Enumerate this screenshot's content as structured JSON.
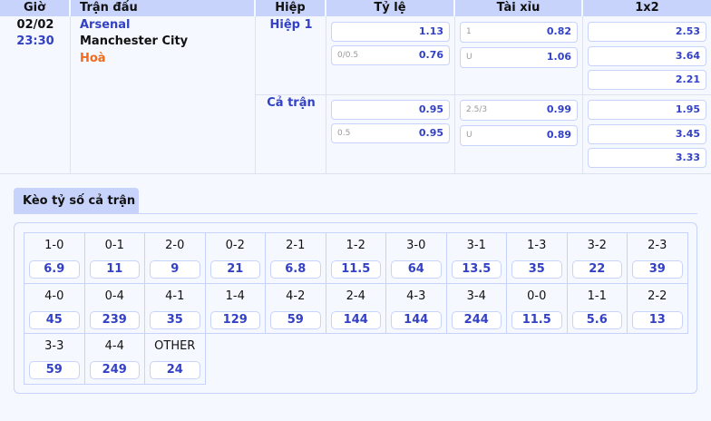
{
  "header": {
    "time": "Giờ",
    "match": "Trận đấu",
    "half": "Hiệp",
    "handicap": "Tỷ lệ",
    "overunder": "Tài xỉu",
    "x12": "1x2"
  },
  "match": {
    "date": "02/02",
    "time": "23:30",
    "home": "Arsenal",
    "away": "Manchester City",
    "draw": "Hoà"
  },
  "periods": [
    {
      "name": "Hiệp 1",
      "handicap": [
        {
          "line": "",
          "odds": "1.13"
        },
        {
          "line": "0/0.5",
          "odds": "0.76"
        }
      ],
      "overunder": [
        {
          "line": "1",
          "odds": "0.82"
        },
        {
          "line": "U",
          "odds": "1.06"
        }
      ],
      "x12": [
        "2.53",
        "3.64",
        "2.21"
      ]
    },
    {
      "name": "Cả trận",
      "handicap": [
        {
          "line": "",
          "odds": "0.95"
        },
        {
          "line": "0.5",
          "odds": "0.95"
        }
      ],
      "overunder": [
        {
          "line": "2.5/3",
          "odds": "0.99"
        },
        {
          "line": "U",
          "odds": "0.89"
        }
      ],
      "x12": [
        "1.95",
        "3.45",
        "3.33"
      ]
    }
  ],
  "correct_score": {
    "tab": "Kèo tỷ số cả trận",
    "items": [
      {
        "s": "1-0",
        "o": "6.9"
      },
      {
        "s": "0-1",
        "o": "11"
      },
      {
        "s": "2-0",
        "o": "9"
      },
      {
        "s": "0-2",
        "o": "21"
      },
      {
        "s": "2-1",
        "o": "6.8"
      },
      {
        "s": "1-2",
        "o": "11.5"
      },
      {
        "s": "3-0",
        "o": "64"
      },
      {
        "s": "3-1",
        "o": "13.5"
      },
      {
        "s": "1-3",
        "o": "35"
      },
      {
        "s": "3-2",
        "o": "22"
      },
      {
        "s": "2-3",
        "o": "39"
      },
      {
        "s": "4-0",
        "o": "45"
      },
      {
        "s": "0-4",
        "o": "239"
      },
      {
        "s": "4-1",
        "o": "35"
      },
      {
        "s": "1-4",
        "o": "129"
      },
      {
        "s": "4-2",
        "o": "59"
      },
      {
        "s": "2-4",
        "o": "144"
      },
      {
        "s": "4-3",
        "o": "144"
      },
      {
        "s": "3-4",
        "o": "244"
      },
      {
        "s": "0-0",
        "o": "11.5"
      },
      {
        "s": "1-1",
        "o": "5.6"
      },
      {
        "s": "2-2",
        "o": "13"
      },
      {
        "s": "3-3",
        "o": "59"
      },
      {
        "s": "4-4",
        "o": "249"
      },
      {
        "s": "OTHER",
        "o": "24"
      }
    ]
  },
  "colors": {
    "accent": "#3241c5",
    "header_bg": "#c8d3fc",
    "draw": "#f26b1d"
  }
}
